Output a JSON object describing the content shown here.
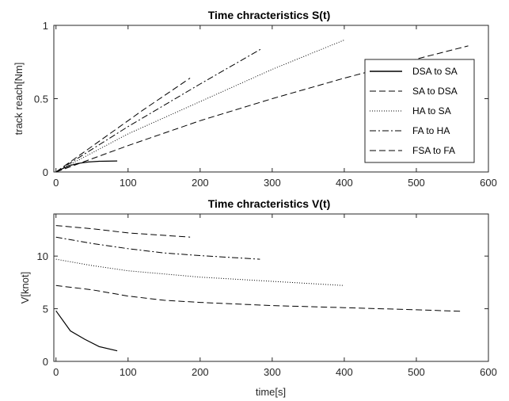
{
  "chart_data": [
    {
      "type": "line",
      "title": "Time chracteristics S(t)",
      "xlabel": "",
      "ylabel": "track reach[Nm]",
      "xlim": [
        -3,
        600
      ],
      "ylim": [
        0,
        1
      ],
      "xticks": [
        0,
        100,
        200,
        300,
        400,
        500,
        600
      ],
      "yticks": [
        0,
        0.5,
        1
      ],
      "xtick_labels": [
        "0",
        "100",
        "200",
        "300",
        "400",
        "500",
        "600"
      ],
      "ytick_labels": [
        "0",
        "0.5",
        "1"
      ],
      "grid": false,
      "legend_position": "right",
      "series": [
        {
          "name": "DSA to SA",
          "dash": "solid",
          "stroke_weight": "thin",
          "x": [
            0,
            10,
            20,
            30,
            45,
            60,
            85
          ],
          "y": [
            0,
            0.025,
            0.045,
            0.058,
            0.068,
            0.073,
            0.075
          ]
        },
        {
          "name": "SA to DSA",
          "dash": "dashed",
          "x": [
            0,
            100,
            200,
            300,
            400,
            500,
            572
          ],
          "y": [
            0,
            0.18,
            0.35,
            0.5,
            0.64,
            0.77,
            0.86
          ]
        },
        {
          "name": "HA to SA",
          "dash": "dotted",
          "x": [
            0,
            100,
            200,
            300,
            400
          ],
          "y": [
            0,
            0.26,
            0.48,
            0.7,
            0.9
          ]
        },
        {
          "name": "FA to HA",
          "dash": "dashdot",
          "x": [
            0,
            100,
            200,
            285
          ],
          "y": [
            0,
            0.31,
            0.6,
            0.84
          ]
        },
        {
          "name": "FSA to FA",
          "dash": "dashed",
          "x": [
            0,
            60,
            120,
            186
          ],
          "y": [
            0,
            0.21,
            0.42,
            0.64
          ]
        }
      ]
    },
    {
      "type": "line",
      "title": "Time chracteristics V(t)",
      "xlabel": "time[s]",
      "ylabel": "V[knot]",
      "xlim": [
        -3,
        600
      ],
      "ylim": [
        0,
        14
      ],
      "xticks": [
        0,
        100,
        200,
        300,
        400,
        500,
        600
      ],
      "yticks": [
        0,
        5,
        10
      ],
      "xtick_labels": [
        "0",
        "100",
        "200",
        "300",
        "400",
        "500",
        "600"
      ],
      "ytick_labels": [
        "0",
        "5",
        "10"
      ],
      "grid": false,
      "series": [
        {
          "dash": "solid",
          "x": [
            0,
            20,
            40,
            60,
            85
          ],
          "y": [
            4.8,
            2.9,
            2.1,
            1.4,
            1.0
          ]
        },
        {
          "dash": "dashed",
          "x": [
            0,
            50,
            100,
            150,
            200,
            300,
            400,
            500,
            565
          ],
          "y": [
            7.2,
            6.8,
            6.2,
            5.8,
            5.6,
            5.3,
            5.1,
            4.9,
            4.75
          ]
        },
        {
          "dash": "dotted",
          "x": [
            0,
            50,
            100,
            200,
            300,
            400
          ],
          "y": [
            9.7,
            9.1,
            8.6,
            8.0,
            7.6,
            7.2
          ]
        },
        {
          "dash": "dashdot",
          "x": [
            0,
            50,
            100,
            150,
            200,
            283
          ],
          "y": [
            11.8,
            11.2,
            10.7,
            10.3,
            10.05,
            9.7
          ]
        },
        {
          "dash": "dashed",
          "x": [
            0,
            50,
            100,
            186
          ],
          "y": [
            12.9,
            12.6,
            12.2,
            11.8
          ]
        }
      ]
    }
  ]
}
